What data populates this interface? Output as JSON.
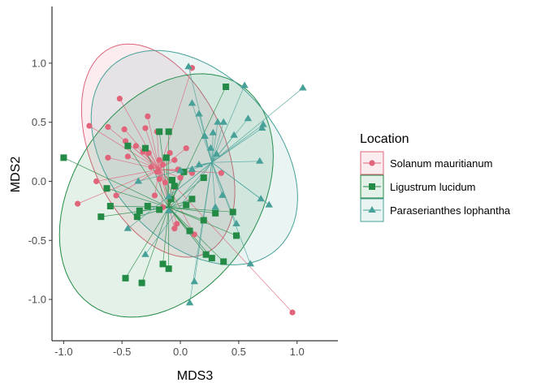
{
  "chart_data": {
    "type": "scatter",
    "xlabel": "MDS3",
    "ylabel": "MDS2",
    "xlim": [
      -1.1,
      1.35
    ],
    "ylim": [
      -1.35,
      1.48
    ],
    "x_ticks": [
      "-1.0",
      "-0.5",
      "0.0",
      "0.5",
      "1.0"
    ],
    "y_ticks": [
      "-1.0",
      "-0.5",
      "0.0",
      "0.5",
      "1.0"
    ],
    "grid": false,
    "legend": {
      "title": "Location",
      "position": "right"
    },
    "series": [
      {
        "name": "Solanum mauritianum",
        "marker": "circle",
        "color": "#E0647A",
        "centroid": [
          -0.18,
          0.1
        ],
        "ellipse": {
          "cx": -0.19,
          "cy": 0.26,
          "rx": 0.57,
          "ry": 0.96,
          "angle": 25
        },
        "points": [
          [
            -0.52,
            0.7
          ],
          [
            -0.78,
            0.47
          ],
          [
            -0.62,
            0.46
          ],
          [
            -0.48,
            0.44
          ],
          [
            -0.28,
            0.55
          ],
          [
            -0.3,
            0.45
          ],
          [
            -0.2,
            0.42
          ],
          [
            -0.47,
            0.34
          ],
          [
            -0.38,
            0.3
          ],
          [
            -0.45,
            0.21
          ],
          [
            -0.32,
            0.25
          ],
          [
            -0.27,
            0.24
          ],
          [
            -0.18,
            0.18
          ],
          [
            -0.15,
            0.14
          ],
          [
            -0.25,
            0.12
          ],
          [
            -0.2,
            0.08
          ],
          [
            -0.18,
            0.02
          ],
          [
            -0.13,
            -0.01
          ],
          [
            -0.09,
            0.24
          ],
          [
            -0.05,
            0.18
          ],
          [
            -0.02,
            0.1
          ],
          [
            0.05,
            0.28
          ],
          [
            0.1,
            0.07
          ],
          [
            0.0,
            0.03
          ],
          [
            -0.05,
            -0.05
          ],
          [
            -0.62,
            0.2
          ],
          [
            -0.72,
            0.0
          ],
          [
            -0.88,
            -0.19
          ],
          [
            -0.55,
            -0.12
          ],
          [
            -0.22,
            -0.12
          ],
          [
            -0.15,
            -0.22
          ],
          [
            -0.03,
            -0.36
          ],
          [
            -0.05,
            -0.4
          ],
          [
            0.12,
            -0.45
          ],
          [
            0.35,
            0.07
          ],
          [
            0.1,
            0.96
          ],
          [
            0.96,
            -1.11
          ]
        ]
      },
      {
        "name": "Ligustrum lucidum",
        "marker": "square",
        "color": "#238B45",
        "centroid": [
          -0.1,
          -0.22
        ],
        "ellipse": {
          "cx": -0.12,
          "cy": -0.12,
          "rx": 0.79,
          "ry": 1.13,
          "angle": -35
        },
        "points": [
          [
            -1.0,
            0.2
          ],
          [
            -0.45,
            0.3
          ],
          [
            -0.18,
            0.42
          ],
          [
            -0.1,
            0.42
          ],
          [
            -0.3,
            0.28
          ],
          [
            -0.12,
            0.2
          ],
          [
            0.03,
            0.08
          ],
          [
            -0.07,
            0.01
          ],
          [
            -0.05,
            -0.04
          ],
          [
            -0.63,
            -0.06
          ],
          [
            -0.6,
            -0.21
          ],
          [
            -0.68,
            -0.3
          ],
          [
            -0.35,
            -0.25
          ],
          [
            -0.37,
            -0.3
          ],
          [
            -0.28,
            -0.21
          ],
          [
            -0.18,
            -0.24
          ],
          [
            -0.08,
            -0.15
          ],
          [
            0.1,
            -0.15
          ],
          [
            0.05,
            -0.2
          ],
          [
            0.3,
            -0.27
          ],
          [
            0.45,
            -0.26
          ],
          [
            0.2,
            -0.33
          ],
          [
            0.08,
            -0.42
          ],
          [
            0.22,
            -0.62
          ],
          [
            0.27,
            -0.65
          ],
          [
            0.37,
            -0.68
          ],
          [
            0.48,
            -0.46
          ],
          [
            -0.15,
            -0.7
          ],
          [
            -0.1,
            -0.74
          ],
          [
            -0.47,
            -0.82
          ],
          [
            -0.33,
            -0.86
          ],
          [
            0.39,
            0.8
          ],
          [
            0.2,
            0.03
          ]
        ]
      },
      {
        "name": "Paraserianthes lophantha",
        "marker": "triangle",
        "color": "#48A199",
        "centroid": [
          0.27,
          0.16
        ],
        "ellipse": {
          "cx": 0.12,
          "cy": 0.2,
          "rx": 0.71,
          "ry": 1.05,
          "angle": 43
        },
        "points": [
          [
            0.07,
            0.97
          ],
          [
            0.55,
            0.81
          ],
          [
            1.05,
            0.79
          ],
          [
            0.1,
            0.66
          ],
          [
            0.16,
            0.57
          ],
          [
            0.32,
            0.5
          ],
          [
            0.37,
            0.5
          ],
          [
            0.58,
            0.53
          ],
          [
            0.71,
            0.48
          ],
          [
            0.7,
            0.45
          ],
          [
            0.46,
            0.39
          ],
          [
            0.28,
            0.41
          ],
          [
            0.21,
            0.38
          ],
          [
            0.26,
            0.28
          ],
          [
            0.31,
            0.23
          ],
          [
            0.16,
            0.14
          ],
          [
            0.1,
            0.1
          ],
          [
            0.0,
            0.09
          ],
          [
            0.68,
            0.17
          ],
          [
            0.69,
            -0.15
          ],
          [
            0.76,
            -0.2
          ],
          [
            0.36,
            -0.12
          ],
          [
            0.3,
            -0.22
          ],
          [
            0.48,
            -0.36
          ],
          [
            0.6,
            -0.7
          ],
          [
            -0.1,
            -0.13
          ],
          [
            -0.1,
            -0.25
          ],
          [
            -0.36,
            0.0
          ],
          [
            -0.45,
            -0.4
          ],
          [
            -0.3,
            -0.62
          ],
          [
            0.12,
            -0.85
          ],
          [
            0.08,
            -1.03
          ]
        ]
      }
    ]
  }
}
